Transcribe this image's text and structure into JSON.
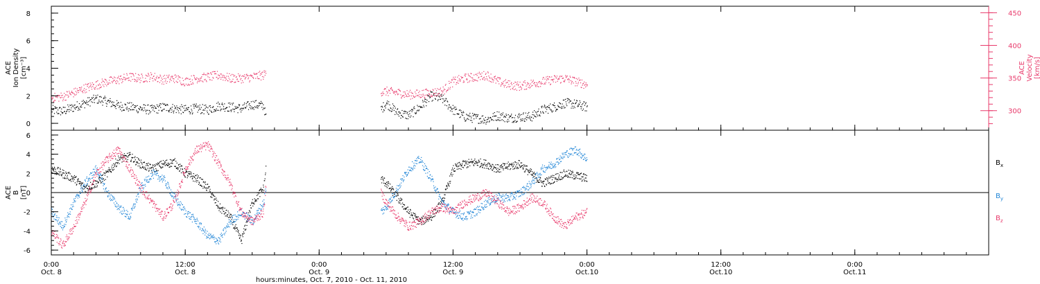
{
  "colors": {
    "black": "#000000",
    "pink": "#e8386a",
    "blue": "#1e84d6"
  },
  "bottom_axis": {
    "title": "hours:minutes, Oct.  7, 2010 - Oct. 11, 2010",
    "hours_range": [
      0,
      84
    ],
    "ticks": [
      {
        "hour": 0,
        "time": "0:00",
        "date": "Oct. 8"
      },
      {
        "hour": 12,
        "time": "12:00",
        "date": "Oct. 8"
      },
      {
        "hour": 24,
        "time": "0:00",
        "date": "Oct. 9"
      },
      {
        "hour": 36,
        "time": "12:00",
        "date": "Oct. 9"
      },
      {
        "hour": 48,
        "time": "0:00",
        "date": "Oct.10"
      },
      {
        "hour": 60,
        "time": "12:00",
        "date": "Oct.10"
      },
      {
        "hour": 72,
        "time": "0:00",
        "date": "Oct.11"
      }
    ],
    "minor_step_hours": 2
  },
  "chart_data": [
    {
      "type": "scatter",
      "title": "",
      "ylabel_left": [
        "ACE",
        "Ion Density",
        "[cm⁻³]"
      ],
      "ylabel_right": [
        "ACE",
        "Velocity",
        "[km/s]"
      ],
      "ylim_left": [
        -0.5,
        8.5
      ],
      "yticks_left": [
        0,
        2,
        4,
        6,
        8
      ],
      "ylim_right": [
        270,
        460
      ],
      "yticks_right": [
        300,
        350,
        400,
        450
      ],
      "data_gap_hours": [
        19.2,
        29.5
      ],
      "series": [
        {
          "name": "",
          "axis": "left",
          "color": "#000000",
          "x": [
            0,
            1,
            2,
            3,
            4,
            5,
            6,
            7,
            8,
            9,
            10,
            11,
            12,
            13,
            14,
            15,
            16,
            17,
            18,
            19,
            19.2,
            29.5,
            30,
            31,
            32,
            33,
            34,
            35,
            36,
            37,
            38,
            39,
            40,
            41,
            42,
            43,
            44,
            45,
            46,
            47,
            48
          ],
          "y": [
            1.0,
            0.9,
            1.2,
            1.5,
            1.8,
            1.6,
            1.3,
            1.2,
            1.1,
            1.0,
            1.2,
            1.1,
            1.0,
            1.1,
            1.0,
            1.3,
            1.2,
            1.1,
            1.4,
            1.3,
            0.5,
            1.0,
            1.5,
            0.8,
            0.6,
            1.2,
            2.0,
            1.8,
            1.0,
            0.5,
            0.4,
            0.3,
            0.6,
            0.4,
            0.5,
            0.5,
            1.0,
            1.2,
            1.5,
            1.4,
            1.2
          ]
        },
        {
          "name": "",
          "axis": "right",
          "color": "#e8386a",
          "x": [
            0,
            1,
            2,
            3,
            4,
            5,
            6,
            7,
            8,
            9,
            10,
            11,
            12,
            13,
            14,
            15,
            16,
            17,
            18,
            19,
            19.2,
            29.5,
            30,
            31,
            32,
            33,
            34,
            35,
            36,
            37,
            38,
            39,
            40,
            41,
            42,
            43,
            44,
            45,
            46,
            47,
            48
          ],
          "y": [
            320,
            322,
            328,
            335,
            340,
            345,
            348,
            352,
            350,
            353,
            348,
            350,
            345,
            350,
            352,
            355,
            350,
            350,
            352,
            355,
            358,
            330,
            330,
            328,
            325,
            326,
            328,
            330,
            345,
            350,
            352,
            355,
            345,
            340,
            338,
            342,
            345,
            348,
            350,
            345,
            340
          ]
        }
      ]
    },
    {
      "type": "scatter",
      "title": "",
      "ylabel_left": [
        "ACE",
        "B",
        "[nT]"
      ],
      "ylim": [
        -6.5,
        6.5
      ],
      "yticks": [
        -6,
        -4,
        -2,
        0,
        2,
        4,
        6
      ],
      "zero_line": true,
      "data_gap_hours": [
        19.2,
        29.5
      ],
      "legend_position": "right",
      "series": [
        {
          "name": "Bx",
          "label_base": "B",
          "label_sub": "x",
          "color": "#000000",
          "x": [
            0,
            1,
            2,
            3,
            4,
            5,
            6,
            7,
            8,
            9,
            10,
            11,
            12,
            13,
            14,
            15,
            16,
            17,
            18,
            19,
            19.2,
            29.5,
            30,
            31,
            32,
            33,
            34,
            35,
            36,
            37,
            38,
            39,
            40,
            41,
            42,
            43,
            44,
            45,
            46,
            47,
            48
          ],
          "y": [
            2.5,
            2.0,
            1.5,
            0.5,
            1.0,
            2.0,
            3.5,
            3.8,
            3.0,
            2.5,
            3.0,
            3.2,
            2.0,
            1.5,
            0.5,
            -1.5,
            -2.5,
            -5.0,
            -1.0,
            0.5,
            2.5,
            1.5,
            1.0,
            -0.5,
            -2.0,
            -3.0,
            -2.5,
            -1.0,
            2.5,
            3.0,
            3.2,
            3.0,
            2.5,
            2.8,
            3.0,
            2.0,
            1.0,
            1.5,
            2.0,
            1.8,
            1.5
          ]
        },
        {
          "name": "By",
          "label_base": "B",
          "label_sub": "y",
          "color": "#1e84d6",
          "x": [
            0,
            1,
            2,
            3,
            4,
            5,
            6,
            7,
            8,
            9,
            10,
            11,
            12,
            13,
            14,
            15,
            16,
            17,
            18,
            19,
            19.2,
            29.5,
            30,
            31,
            32,
            33,
            34,
            35,
            36,
            37,
            38,
            39,
            40,
            41,
            42,
            43,
            44,
            45,
            46,
            47,
            48
          ],
          "y": [
            -2.0,
            -3.5,
            -1.0,
            1.0,
            2.5,
            0.0,
            -1.5,
            -2.5,
            0.5,
            2.0,
            1.5,
            -0.5,
            -2.0,
            -3.0,
            -4.5,
            -5.0,
            -3.0,
            -2.0,
            -3.0,
            -1.0,
            0.5,
            -2.0,
            -1.5,
            0.5,
            2.5,
            3.5,
            1.5,
            -1.0,
            -2.0,
            -2.5,
            -2.0,
            -1.0,
            -0.5,
            -0.5,
            0.0,
            1.0,
            2.5,
            3.0,
            4.0,
            4.5,
            3.5
          ]
        },
        {
          "name": "Bz",
          "label_base": "B",
          "label_sub": "z",
          "color": "#e8386a",
          "x": [
            0,
            1,
            2,
            3,
            4,
            5,
            6,
            7,
            8,
            9,
            10,
            11,
            12,
            13,
            14,
            15,
            16,
            17,
            18,
            19,
            19.2,
            29.5,
            30,
            31,
            32,
            33,
            34,
            35,
            36,
            37,
            38,
            39,
            40,
            41,
            42,
            43,
            44,
            45,
            46,
            47,
            48
          ],
          "y": [
            -4.0,
            -5.5,
            -3.5,
            -1.0,
            2.0,
            3.5,
            4.5,
            2.5,
            0.5,
            -1.0,
            -2.5,
            -1.0,
            2.5,
            4.5,
            5.0,
            3.0,
            1.0,
            -2.0,
            -3.0,
            -2.0,
            1.0,
            0.0,
            -1.0,
            -2.5,
            -3.5,
            -3.0,
            -2.0,
            -1.5,
            -2.0,
            -1.0,
            -0.5,
            0.0,
            -1.0,
            -2.0,
            -1.5,
            -0.5,
            -1.0,
            -2.5,
            -3.5,
            -2.5,
            -2.0
          ]
        }
      ]
    }
  ]
}
